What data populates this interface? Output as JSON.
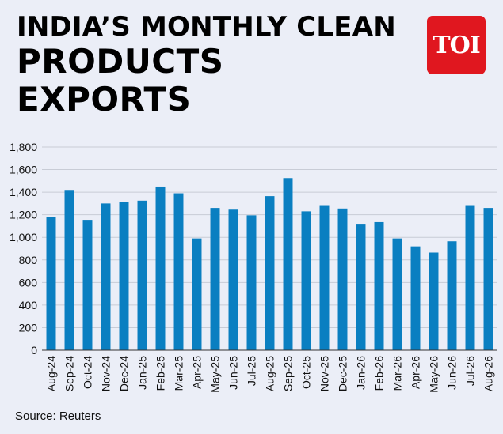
{
  "header": {
    "title_line1": "INDIA’S MONTHLY CLEAN",
    "title_line2": "PRODUCTS",
    "title_line3": "EXPORTS"
  },
  "logo": {
    "text": "TOI",
    "color": "#e0171f"
  },
  "source": "Source: Reuters",
  "chart_data": {
    "type": "bar",
    "categories": [
      "Aug-24",
      "Sep-24",
      "Oct-24",
      "Nov-24",
      "Dec-24",
      "Jan-25",
      "Feb-25",
      "Mar-25",
      "Apr-25",
      "May-25",
      "Jun-25",
      "Jul-25",
      "Aug-25",
      "Sep-25",
      "Oct-25",
      "Nov-25",
      "Dec-25",
      "Jan-26",
      "Feb-26",
      "Mar-26",
      "Apr-26",
      "May-26",
      "Jun-26",
      "Jul-26",
      "Aug-26"
    ],
    "values": [
      1180,
      1420,
      1155,
      1300,
      1315,
      1325,
      1450,
      1390,
      990,
      1260,
      1245,
      1195,
      1365,
      1525,
      1230,
      1285,
      1255,
      1120,
      1135,
      990,
      920,
      865,
      965,
      1285,
      1260
    ],
    "yticks": [
      "0",
      "200",
      "400",
      "600",
      "800",
      "1,000",
      "1,200",
      "1,400",
      "1,600",
      "1,800"
    ],
    "ylim": [
      0,
      1800
    ],
    "bar_color": "#0a7fc1",
    "grid": true
  }
}
